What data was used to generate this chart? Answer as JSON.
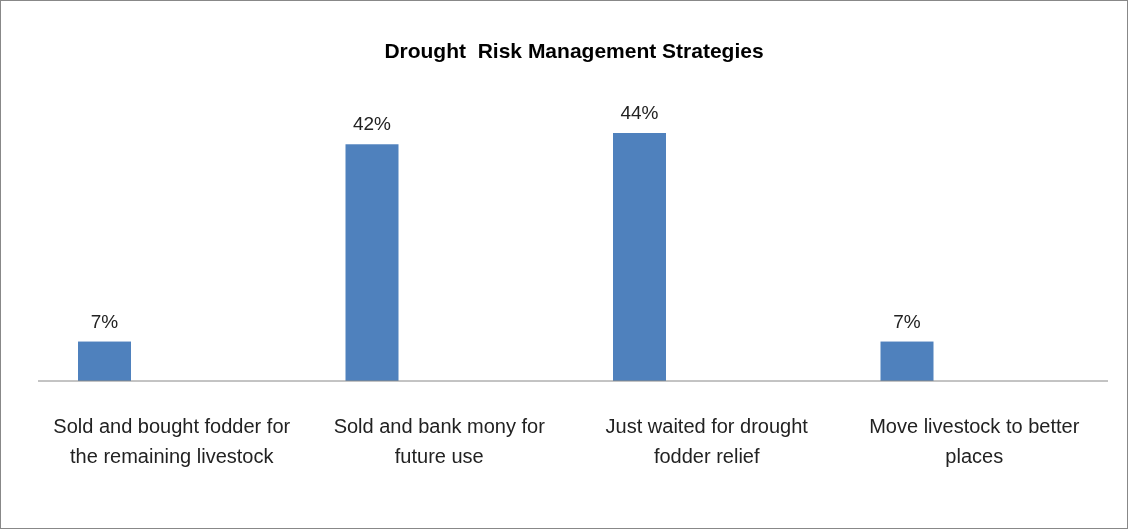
{
  "chart_data": {
    "type": "bar",
    "title": "Drought  Risk Management Strategies",
    "categories": [
      "Sold and bought fodder for the remaining livestock",
      "Sold and bank mony for future use",
      "Just waited for drought fodder relief",
      "Move livestock to better places"
    ],
    "values": [
      7,
      42,
      44,
      7
    ],
    "value_labels": [
      "7%",
      "42%",
      "44%",
      "7%"
    ],
    "color": "#4f81bd"
  }
}
